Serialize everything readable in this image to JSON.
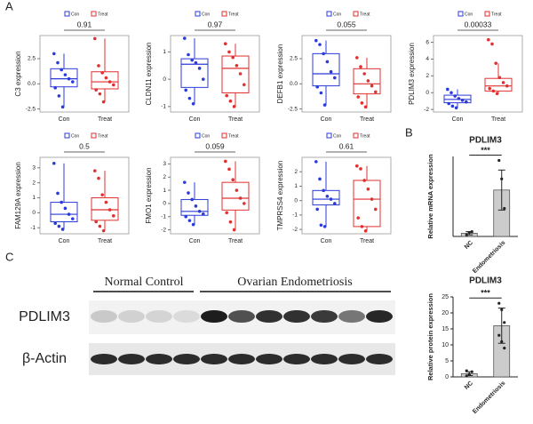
{
  "panel_labels": [
    "A",
    "B",
    "C"
  ],
  "chart_data": [
    {
      "type": "box",
      "ylabel": "C3 expression",
      "p_value": 0.91,
      "ylim": [
        -2.8,
        4.8
      ],
      "yticks": [
        -2.5,
        {
          "value": 0,
          "label": "0.0"
        },
        2.5
      ],
      "series": [
        {
          "name": "Con",
          "color": "#2b3bd9",
          "box": [
            -2.3,
            -0.3,
            0.5,
            1.5,
            3.0
          ],
          "points": [
            3.0,
            2.1,
            1.4,
            0.9,
            0.5,
            0.2,
            -0.4,
            -1.2,
            -2.3
          ]
        },
        {
          "name": "Treat",
          "color": "#e03030",
          "box": [
            -1.8,
            -0.5,
            0.2,
            1.2,
            4.5
          ],
          "points": [
            4.5,
            1.8,
            1.1,
            0.6,
            0.2,
            -0.1,
            -0.6,
            -1.0,
            -1.8
          ]
        }
      ]
    },
    {
      "type": "box",
      "ylabel": "CLDN11 expression",
      "p_value": 0.97,
      "ylim": [
        -1.2,
        1.6
      ],
      "yticks": [
        -1,
        0,
        1
      ],
      "series": [
        {
          "name": "Con",
          "color": "#2b3bd9",
          "box": [
            -0.9,
            -0.3,
            0.55,
            0.75,
            1.5
          ],
          "points": [
            1.5,
            0.9,
            0.7,
            0.6,
            0.4,
            0.0,
            -0.4,
            -0.7,
            -0.9
          ]
        },
        {
          "name": "Treat",
          "color": "#e03030",
          "box": [
            -1.0,
            -0.5,
            0.4,
            0.85,
            1.3
          ],
          "points": [
            1.3,
            1.0,
            0.8,
            0.5,
            0.2,
            -0.2,
            -0.6,
            -0.8,
            -1.0
          ]
        }
      ]
    },
    {
      "type": "box",
      "ylabel": "DEFB1 expression",
      "p_value": 0.055,
      "ylim": [
        -2.8,
        4.8
      ],
      "yticks": [
        -2.5,
        {
          "value": 0,
          "label": "0.0"
        },
        2.5
      ],
      "series": [
        {
          "name": "Con",
          "color": "#2b3bd9",
          "box": [
            -2.1,
            -0.2,
            1.0,
            3.0,
            4.3
          ],
          "points": [
            4.3,
            3.9,
            3.0,
            2.2,
            1.2,
            0.6,
            -0.3,
            -0.9,
            -2.1
          ]
        },
        {
          "name": "Treat",
          "color": "#e03030",
          "box": [
            -2.3,
            -1.0,
            0.0,
            1.5,
            2.6
          ],
          "points": [
            2.6,
            1.7,
            1.0,
            0.3,
            -0.2,
            -0.8,
            -1.3,
            -1.9,
            -2.3
          ]
        }
      ]
    },
    {
      "type": "box",
      "ylabel": "PDLIM3 expression",
      "p_value": 0.00033,
      "ylim": [
        -2.3,
        6.8
      ],
      "yticks": [
        -2,
        0,
        2,
        4,
        6
      ],
      "series": [
        {
          "name": "Con",
          "color": "#2b3bd9",
          "box": [
            -1.8,
            -1.2,
            -0.8,
            -0.3,
            0.4
          ],
          "points": [
            0.4,
            0.0,
            -0.4,
            -0.7,
            -0.9,
            -1.1,
            -1.3,
            -1.6,
            -1.8
          ]
        },
        {
          "name": "Treat",
          "color": "#e03030",
          "box": [
            -0.1,
            0.2,
            0.8,
            1.7,
            3.5
          ],
          "points": [
            6.3,
            5.8,
            3.5,
            1.8,
            1.2,
            0.8,
            0.5,
            0.2,
            -0.1
          ]
        }
      ]
    },
    {
      "type": "box",
      "ylabel": "FAM129A expression",
      "p_value": 0.5,
      "ylim": [
        -1.4,
        3.7
      ],
      "yticks": [
        -1,
        0,
        1,
        2,
        3
      ],
      "series": [
        {
          "name": "Con",
          "color": "#2b3bd9",
          "box": [
            -1.1,
            -0.6,
            -0.1,
            0.7,
            3.3
          ],
          "points": [
            3.3,
            1.3,
            0.7,
            0.3,
            -0.1,
            -0.4,
            -0.7,
            -0.9,
            -1.1
          ]
        },
        {
          "name": "Treat",
          "color": "#e03030",
          "box": [
            -1.2,
            -0.5,
            0.2,
            1.0,
            2.8
          ],
          "points": [
            2.8,
            2.3,
            1.2,
            0.7,
            0.2,
            -0.2,
            -0.6,
            -0.9,
            -1.2
          ]
        }
      ]
    },
    {
      "type": "box",
      "ylabel": "FMO1 expression",
      "p_value": 0.059,
      "ylim": [
        -2.3,
        3.5
      ],
      "yticks": [
        -2,
        -1,
        0,
        1,
        2,
        3
      ],
      "series": [
        {
          "name": "Con",
          "color": "#2b3bd9",
          "box": [
            -1.6,
            -0.9,
            -0.6,
            0.3,
            1.6
          ],
          "points": [
            1.6,
            0.8,
            0.3,
            -0.2,
            -0.6,
            -0.8,
            -1.0,
            -1.3,
            -1.6
          ]
        },
        {
          "name": "Treat",
          "color": "#e03030",
          "box": [
            -2.0,
            -0.5,
            0.4,
            1.6,
            3.2
          ],
          "points": [
            3.2,
            2.6,
            1.8,
            1.0,
            0.4,
            0.0,
            -0.7,
            -1.4,
            -2.0
          ]
        }
      ]
    },
    {
      "type": "box",
      "ylabel": "TMPRSS4 expression",
      "p_value": 0.61,
      "ylim": [
        -2.3,
        3.0
      ],
      "yticks": [
        -2,
        -1,
        0,
        1,
        2
      ],
      "series": [
        {
          "name": "Con",
          "color": "#2b3bd9",
          "box": [
            -1.8,
            -0.3,
            0.1,
            0.7,
            2.7
          ],
          "points": [
            2.7,
            1.5,
            0.7,
            0.3,
            0.1,
            -0.2,
            -0.6,
            -1.7,
            -1.8
          ]
        },
        {
          "name": "Treat",
          "color": "#e03030",
          "box": [
            -2.1,
            -1.8,
            0.1,
            1.4,
            2.4
          ],
          "points": [
            2.4,
            2.2,
            1.4,
            0.8,
            0.1,
            -0.6,
            -1.2,
            -1.8,
            -2.1
          ]
        }
      ]
    },
    {
      "type": "bar",
      "title": "PDLIM3",
      "ylabel": "Relative mRNA expression",
      "significance": "***",
      "categories": [
        "NC",
        "Endometriosis"
      ],
      "values": [
        0.04,
        0.58
      ],
      "errors": [
        0.02,
        0.25
      ],
      "points": [
        [
          0.02,
          0.05,
          0.06
        ],
        [
          0.95,
          0.72,
          0.35
        ]
      ],
      "color": "#cccccc",
      "ylim": [
        0,
        1
      ]
    },
    {
      "type": "bar",
      "title": "PDLIM3",
      "ylabel": "Relative protein expression",
      "significance": "***",
      "categories": [
        "NC",
        "Endometriosis"
      ],
      "values": [
        1,
        16
      ],
      "errors": [
        0.6,
        5.5
      ],
      "points": [
        [
          0.3,
          0.8,
          1.6,
          1.9
        ],
        [
          23,
          21,
          17,
          13,
          11,
          9
        ]
      ],
      "color": "#cccccc",
      "ylim": [
        0,
        25
      ],
      "yticks": [
        0,
        5,
        10,
        15,
        20,
        25
      ]
    }
  ],
  "blot": {
    "groups": [
      "Normal Control",
      "Ovarian Endometriosis"
    ],
    "rows": [
      "PDLIM3",
      "β-Actin"
    ]
  }
}
